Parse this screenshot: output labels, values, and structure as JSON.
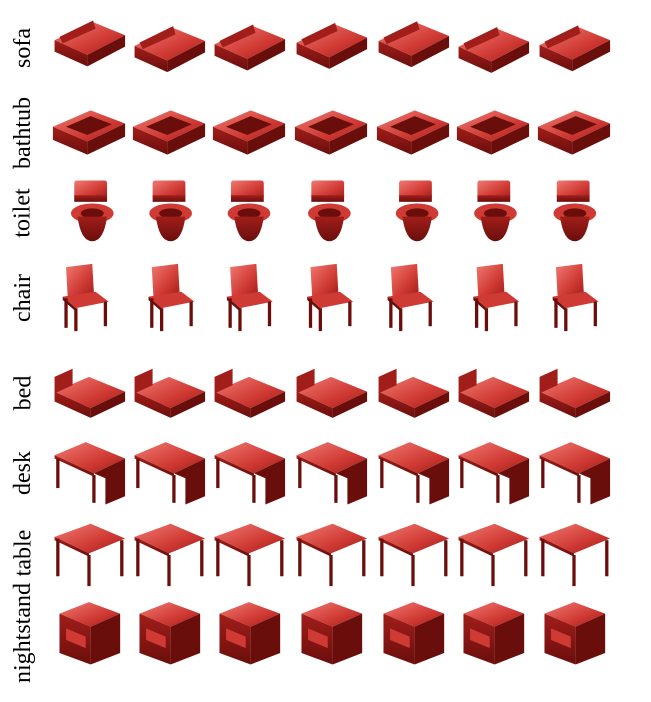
{
  "figure": {
    "rows": [
      {
        "label": "sofa",
        "shape": "sofa"
      },
      {
        "label": "bathtub",
        "shape": "bathtub"
      },
      {
        "label": "toilet",
        "shape": "toilet"
      },
      {
        "label": "chair",
        "shape": "chair"
      },
      {
        "label": "bed",
        "shape": "bed"
      },
      {
        "label": "desk",
        "shape": "desk"
      },
      {
        "label": "table",
        "shape": "table"
      },
      {
        "label": "nightstand",
        "shape": "nightstand"
      }
    ],
    "samples_per_row": 7,
    "colors": {
      "highlight": "#f07a72",
      "mid": "#d03a34",
      "base": "#a11e1a",
      "dark": "#6a0e0c",
      "outline": "#4a0806"
    }
  }
}
